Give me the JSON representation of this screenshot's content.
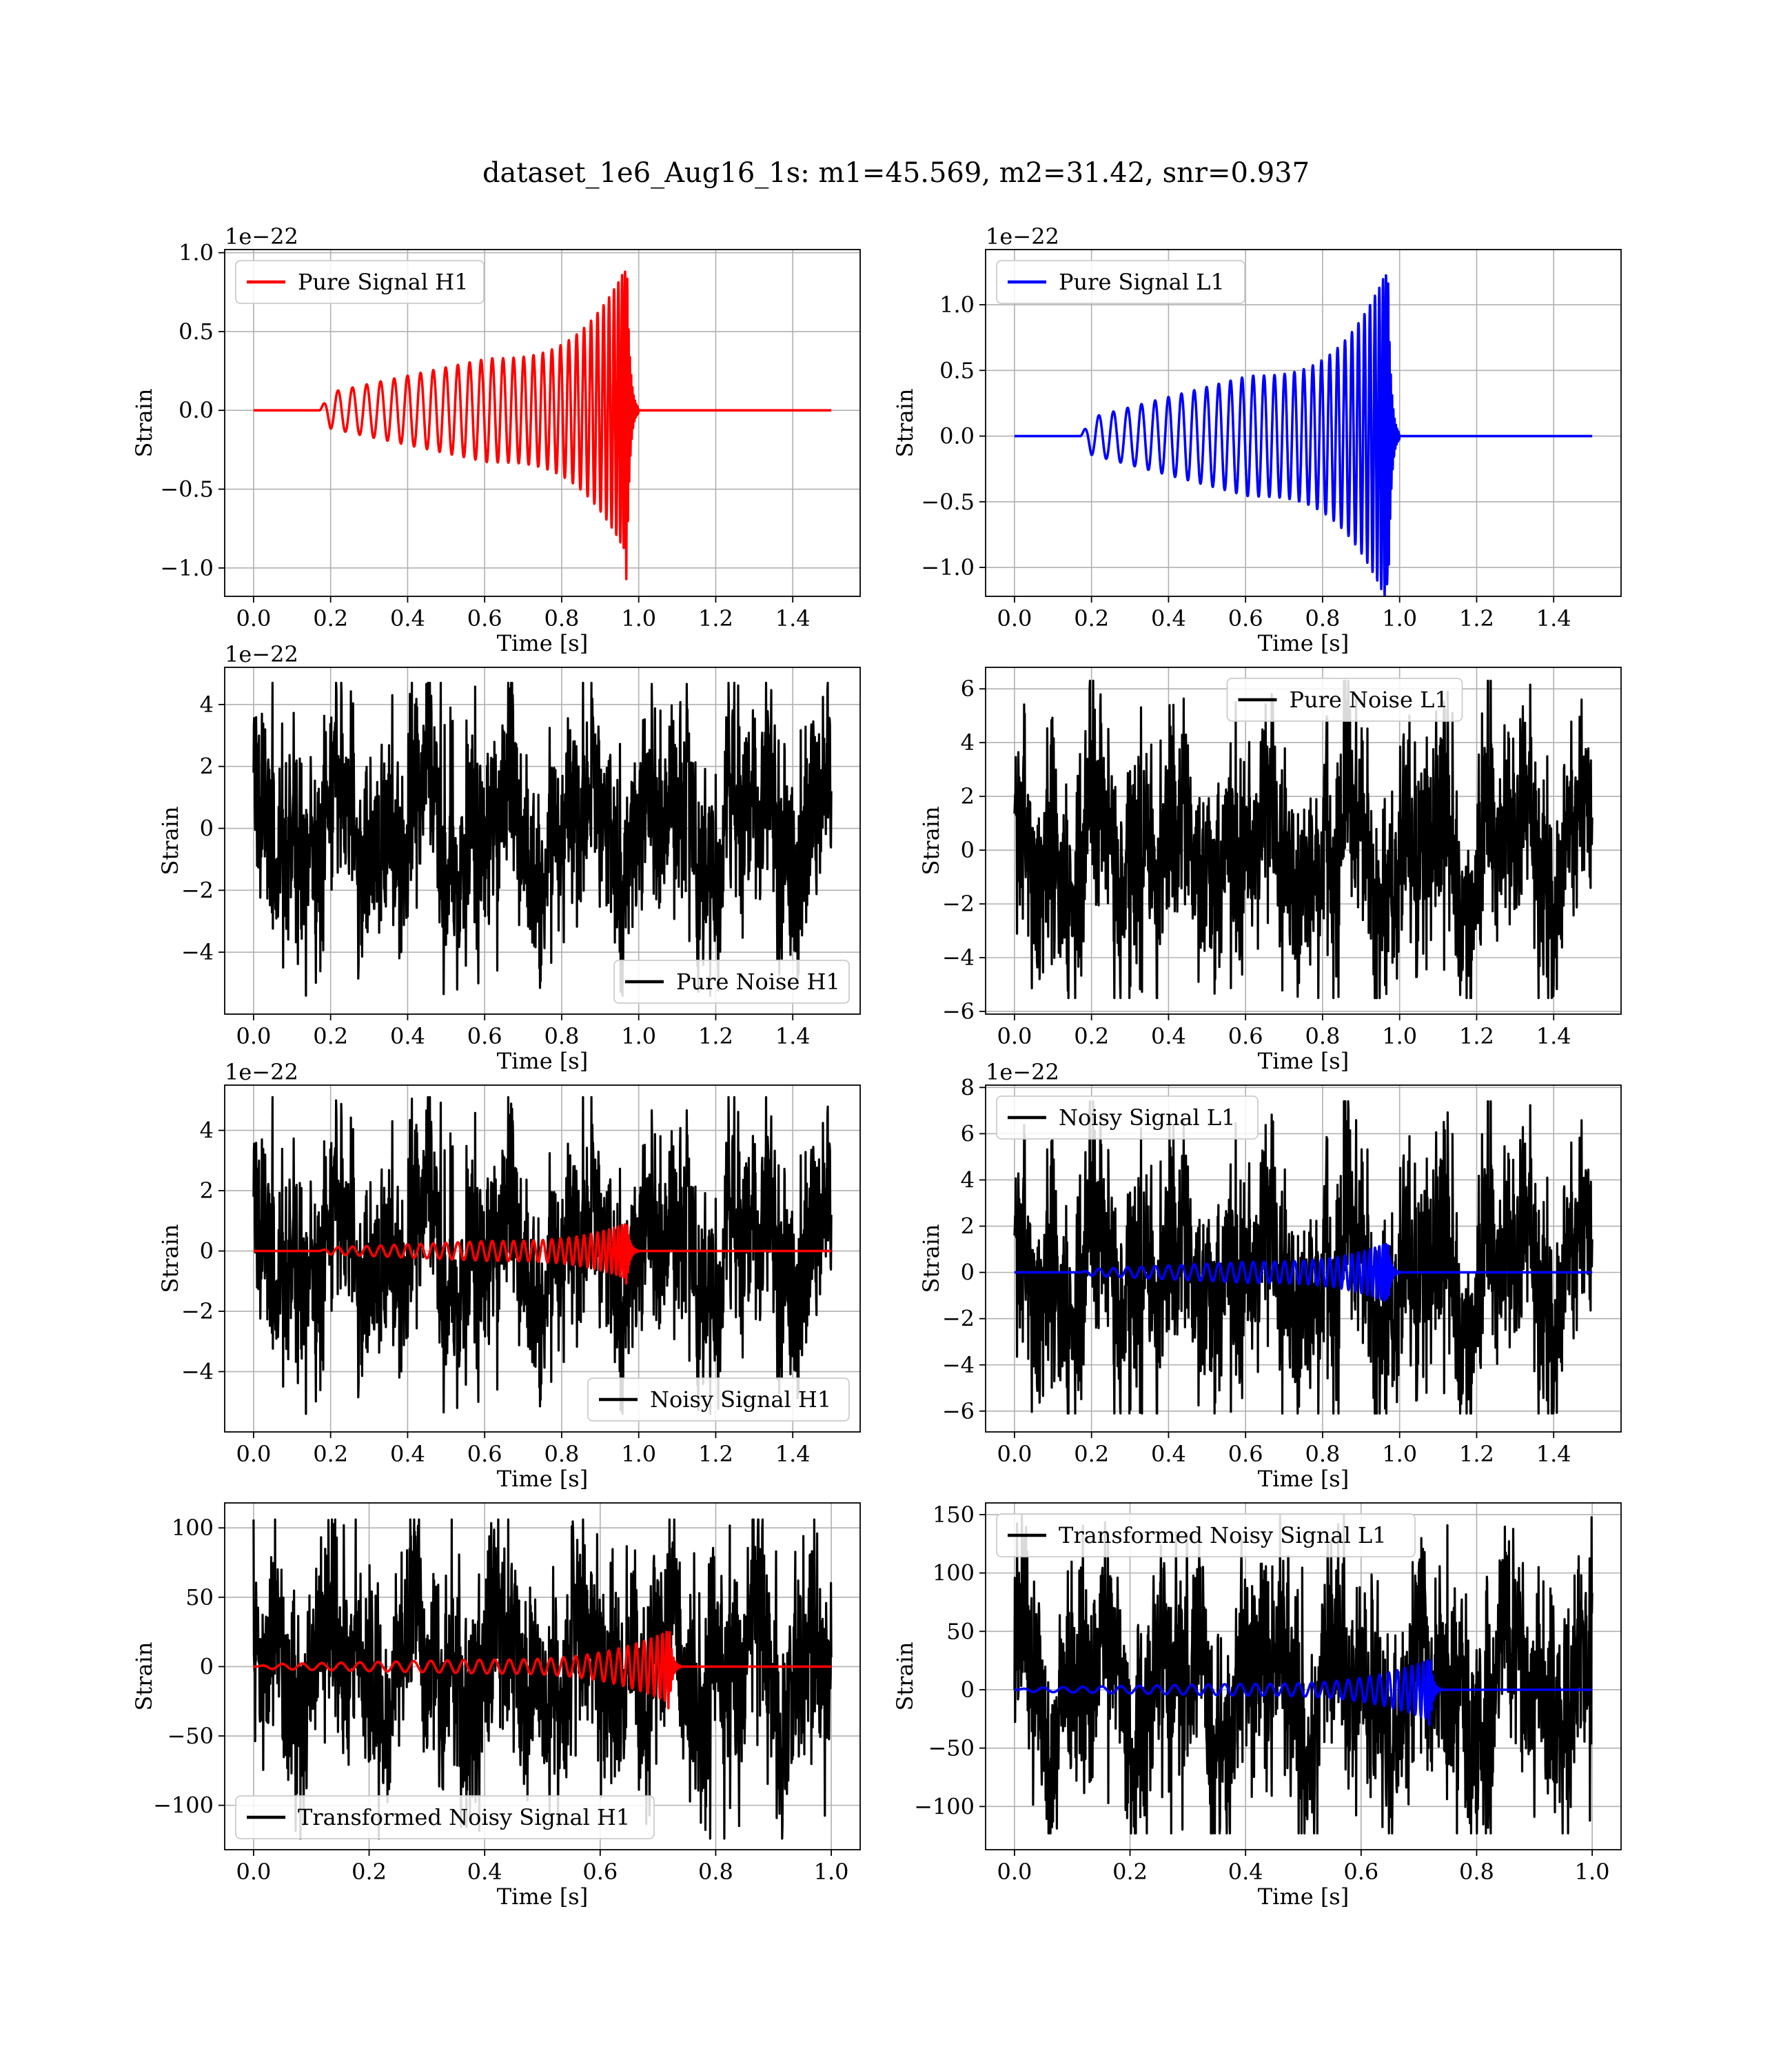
{
  "figure": {
    "title": "dataset_1e6_Aug16_1s: m1=45.569, m2=31.42, snr=0.937"
  },
  "chart_data": [
    {
      "id": "pure-signal-h1",
      "type": "line",
      "xlabel": "Time [s]",
      "ylabel": "Strain",
      "offset_text": "1e−22",
      "xlim": [
        -0.075,
        1.575
      ],
      "ylim": [
        -1.18,
        1.02
      ],
      "xticks": [
        0,
        0.2,
        0.4,
        0.6,
        0.8,
        1.0,
        1.2,
        1.4
      ],
      "xtick_labels": [
        "0.0",
        "0.2",
        "0.4",
        "0.6",
        "0.8",
        "1.0",
        "1.2",
        "1.4"
      ],
      "yticks": [
        -1.0,
        -0.5,
        0.0,
        0.5,
        1.0
      ],
      "ytick_labels": [
        "−1.0",
        "−0.5",
        "0.0",
        "0.5",
        "1.0"
      ],
      "grid": true,
      "legend_position": "upper left",
      "legend": [
        {
          "label": "Pure Signal H1",
          "color": "#ff0000"
        }
      ],
      "series": [
        {
          "name": "Pure Signal H1",
          "kind": "chirp",
          "color": "#ff0000",
          "x_range": [
            0,
            1.5
          ],
          "t_start": 0.17,
          "t_merge": 0.97,
          "t_end": 1.0,
          "peak_amplitude": 0.92,
          "min_value": -1.07,
          "early_amplitude": 0.1,
          "mid_amplitude": 0.33
        }
      ]
    },
    {
      "id": "pure-signal-l1",
      "type": "line",
      "xlabel": "Time [s]",
      "ylabel": "Strain",
      "offset_text": "1e−22",
      "xlim": [
        -0.075,
        1.575
      ],
      "ylim": [
        -1.22,
        1.42
      ],
      "xticks": [
        0,
        0.2,
        0.4,
        0.6,
        0.8,
        1.0,
        1.2,
        1.4
      ],
      "xtick_labels": [
        "0.0",
        "0.2",
        "0.4",
        "0.6",
        "0.8",
        "1.0",
        "1.2",
        "1.4"
      ],
      "yticks": [
        -1.0,
        -0.5,
        0.0,
        0.5,
        1.0
      ],
      "ytick_labels": [
        "−1.0",
        "−0.5",
        "0.0",
        "0.5",
        "1.0"
      ],
      "grid": true,
      "legend_position": "upper left",
      "legend": [
        {
          "label": "Pure Signal L1",
          "color": "#0000ff"
        }
      ],
      "series": [
        {
          "name": "Pure Signal L1",
          "kind": "chirp",
          "color": "#0000ff",
          "x_range": [
            0,
            1.5
          ],
          "t_start": 0.17,
          "t_merge": 0.97,
          "t_end": 1.0,
          "peak_amplitude": 1.28,
          "min_value": -1.1,
          "early_amplitude": 0.12,
          "mid_amplitude": 0.46
        }
      ]
    },
    {
      "id": "pure-noise-h1",
      "type": "line",
      "xlabel": "Time [s]",
      "ylabel": "Strain",
      "offset_text": "1e−22",
      "xlim": [
        -0.075,
        1.575
      ],
      "ylim": [
        -6.0,
        5.2
      ],
      "xticks": [
        0,
        0.2,
        0.4,
        0.6,
        0.8,
        1.0,
        1.2,
        1.4
      ],
      "xtick_labels": [
        "0.0",
        "0.2",
        "0.4",
        "0.6",
        "0.8",
        "1.0",
        "1.2",
        "1.4"
      ],
      "yticks": [
        -4,
        -2,
        0,
        2,
        4
      ],
      "ytick_labels": [
        "−4",
        "−2",
        "0",
        "2",
        "4"
      ],
      "grid": true,
      "legend_position": "lower right",
      "legend": [
        {
          "label": "Pure Noise H1",
          "color": "#000000"
        }
      ],
      "series": [
        {
          "name": "Pure Noise H1",
          "kind": "noise",
          "color": "#000000",
          "x_range": [
            0,
            1.5
          ],
          "max": 4.7,
          "min": -5.4,
          "seed": 11
        }
      ]
    },
    {
      "id": "pure-noise-l1",
      "type": "line",
      "xlabel": "Time [s]",
      "ylabel": "Strain",
      "offset_text": "",
      "xlim": [
        -0.075,
        1.575
      ],
      "ylim": [
        -6.1,
        6.8
      ],
      "xticks": [
        0,
        0.2,
        0.4,
        0.6,
        0.8,
        1.0,
        1.2,
        1.4
      ],
      "xtick_labels": [
        "0.0",
        "0.2",
        "0.4",
        "0.6",
        "0.8",
        "1.0",
        "1.2",
        "1.4"
      ],
      "yticks": [
        -6,
        -4,
        -2,
        0,
        2,
        4,
        6
      ],
      "ytick_labels": [
        "−6",
        "−4",
        "−2",
        "0",
        "2",
        "4",
        "6"
      ],
      "grid": true,
      "legend_position": "upper center",
      "legend": [
        {
          "label": "Pure Noise L1",
          "color": "#000000"
        }
      ],
      "series": [
        {
          "name": "Pure Noise L1",
          "kind": "noise",
          "color": "#000000",
          "x_range": [
            0,
            1.5
          ],
          "max": 6.3,
          "min": -5.5,
          "seed": 23
        }
      ]
    },
    {
      "id": "noisy-signal-h1",
      "type": "line",
      "xlabel": "Time [s]",
      "ylabel": "Strain",
      "offset_text": "1e−22",
      "xlim": [
        -0.075,
        1.575
      ],
      "ylim": [
        -6.0,
        5.5
      ],
      "xticks": [
        0,
        0.2,
        0.4,
        0.6,
        0.8,
        1.0,
        1.2,
        1.4
      ],
      "xtick_labels": [
        "0.0",
        "0.2",
        "0.4",
        "0.6",
        "0.8",
        "1.0",
        "1.2",
        "1.4"
      ],
      "yticks": [
        -4,
        -2,
        0,
        2,
        4
      ],
      "ytick_labels": [
        "−4",
        "−2",
        "0",
        "2",
        "4"
      ],
      "grid": true,
      "legend_position": "lower right",
      "legend": [
        {
          "label": "Noisy Signal H1",
          "color": "#000000"
        }
      ],
      "series": [
        {
          "name": "Noisy Signal H1",
          "kind": "noise",
          "color": "#000000",
          "x_range": [
            0,
            1.5
          ],
          "max": 5.1,
          "min": -5.4,
          "seed": 11
        },
        {
          "name": "",
          "kind": "chirp",
          "color": "#ff0000",
          "x_range": [
            0,
            1.5
          ],
          "t_start": 0.17,
          "t_merge": 0.97,
          "t_end": 1.0,
          "peak_amplitude": 0.92,
          "min_value": -1.07,
          "early_amplitude": 0.1,
          "mid_amplitude": 0.33
        }
      ]
    },
    {
      "id": "noisy-signal-l1",
      "type": "line",
      "xlabel": "Time [s]",
      "ylabel": "Strain",
      "offset_text": "1e−22",
      "xlim": [
        -0.075,
        1.575
      ],
      "ylim": [
        -6.9,
        8.1
      ],
      "xticks": [
        0,
        0.2,
        0.4,
        0.6,
        0.8,
        1.0,
        1.2,
        1.4
      ],
      "xtick_labels": [
        "0.0",
        "0.2",
        "0.4",
        "0.6",
        "0.8",
        "1.0",
        "1.2",
        "1.4"
      ],
      "yticks": [
        -6,
        -4,
        -2,
        0,
        2,
        4,
        6,
        8
      ],
      "ytick_labels": [
        "−6",
        "−4",
        "−2",
        "0",
        "2",
        "4",
        "6",
        "8"
      ],
      "grid": true,
      "legend_position": "upper left",
      "legend": [
        {
          "label": "Noisy Signal L1",
          "color": "#000000"
        }
      ],
      "series": [
        {
          "name": "Noisy Signal L1",
          "kind": "noise",
          "color": "#000000",
          "x_range": [
            0,
            1.5
          ],
          "max": 7.4,
          "min": -6.1,
          "seed": 23
        },
        {
          "name": "",
          "kind": "chirp",
          "color": "#0000ff",
          "x_range": [
            0,
            1.5
          ],
          "t_start": 0.17,
          "t_merge": 0.97,
          "t_end": 1.0,
          "peak_amplitude": 1.28,
          "min_value": -1.1,
          "early_amplitude": 0.12,
          "mid_amplitude": 0.46
        }
      ]
    },
    {
      "id": "transformed-noisy-signal-h1",
      "type": "line",
      "xlabel": "Time [s]",
      "ylabel": "Strain",
      "offset_text": "",
      "xlim": [
        -0.05,
        1.05
      ],
      "ylim": [
        -132,
        118
      ],
      "xticks": [
        0,
        0.2,
        0.4,
        0.6,
        0.8,
        1.0
      ],
      "xtick_labels": [
        "0.0",
        "0.2",
        "0.4",
        "0.6",
        "0.8",
        "1.0"
      ],
      "yticks": [
        -100,
        -50,
        0,
        50,
        100
      ],
      "ytick_labels": [
        "−100",
        "−50",
        "0",
        "50",
        "100"
      ],
      "grid": true,
      "legend_position": "lower left",
      "legend": [
        {
          "label": "Transformed Noisy Signal H1",
          "color": "#000000"
        }
      ],
      "series": [
        {
          "name": "Transformed Noisy Signal H1",
          "kind": "noise",
          "color": "#000000",
          "x_range": [
            0,
            1.0
          ],
          "max": 106,
          "min": -124,
          "seed": 37
        },
        {
          "name": "",
          "kind": "chirp",
          "color": "#ff0000",
          "x_range": [
            0,
            1.0
          ],
          "t_start": 0.0,
          "t_merge": 0.72,
          "t_end": 0.74,
          "peak_amplitude": 26,
          "min_value": -30,
          "early_amplitude": 1.5,
          "mid_amplitude": 5
        }
      ]
    },
    {
      "id": "transformed-noisy-signal-l1",
      "type": "line",
      "xlabel": "Time [s]",
      "ylabel": "Strain",
      "offset_text": "",
      "xlim": [
        -0.05,
        1.05
      ],
      "ylim": [
        -137,
        160
      ],
      "xticks": [
        0,
        0.2,
        0.4,
        0.6,
        0.8,
        1.0
      ],
      "xtick_labels": [
        "0.0",
        "0.2",
        "0.4",
        "0.6",
        "0.8",
        "1.0"
      ],
      "yticks": [
        -100,
        -50,
        0,
        50,
        100,
        150
      ],
      "ytick_labels": [
        "−100",
        "−50",
        "0",
        "50",
        "100",
        "150"
      ],
      "grid": true,
      "legend_position": "upper left",
      "legend": [
        {
          "label": "Transformed Noisy Signal L1",
          "color": "#000000"
        }
      ],
      "series": [
        {
          "name": "Transformed Noisy Signal L1",
          "kind": "noise",
          "color": "#000000",
          "x_range": [
            0,
            1.0
          ],
          "max": 150,
          "min": -123,
          "seed": 41
        },
        {
          "name": "",
          "kind": "chirp",
          "color": "#0000ff",
          "x_range": [
            0,
            1.0
          ],
          "t_start": 0.0,
          "t_merge": 0.72,
          "t_end": 0.74,
          "peak_amplitude": 26,
          "min_value": -30,
          "early_amplitude": 1.5,
          "mid_amplitude": 5
        }
      ]
    }
  ]
}
